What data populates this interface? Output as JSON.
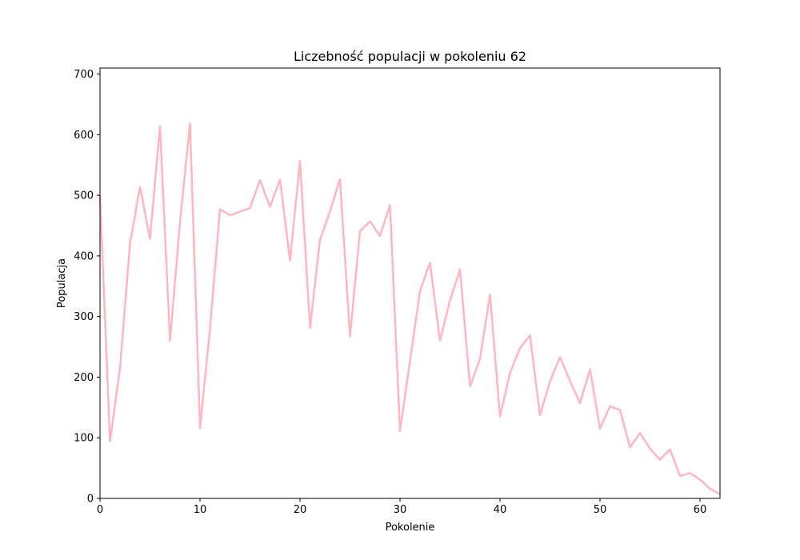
{
  "chart_data": {
    "type": "line",
    "title": "Liczebność populacji w pokoleniu 62",
    "xlabel": "Pokolenie",
    "ylabel": "Populacja",
    "xlim": [
      0,
      62
    ],
    "ylim": [
      0,
      710
    ],
    "xticks": [
      0,
      10,
      20,
      30,
      40,
      50,
      60
    ],
    "yticks": [
      0,
      100,
      200,
      300,
      400,
      500,
      600,
      700
    ],
    "grid": false,
    "series": [
      {
        "color": "#ffb6c1",
        "x": [
          0,
          1,
          2,
          3,
          4,
          5,
          6,
          7,
          8,
          9,
          10,
          11,
          12,
          13,
          14,
          15,
          16,
          17,
          18,
          19,
          20,
          21,
          22,
          23,
          24,
          25,
          26,
          27,
          28,
          29,
          30,
          31,
          32,
          33,
          34,
          35,
          36,
          37,
          38,
          39,
          40,
          41,
          42,
          43,
          44,
          45,
          46,
          47,
          48,
          49,
          50,
          51,
          52,
          53,
          54,
          55,
          56,
          57,
          58,
          59,
          60,
          61,
          62
        ],
        "y": [
          500,
          94,
          215,
          420,
          514,
          428,
          614,
          260,
          455,
          619,
          116,
          280,
          477,
          467,
          473,
          479,
          525,
          481,
          526,
          392,
          557,
          281,
          427,
          473,
          527,
          267,
          441,
          457,
          433,
          484,
          111,
          227,
          342,
          389,
          260,
          327,
          378,
          185,
          230,
          336,
          135,
          207,
          248,
          269,
          137,
          193,
          233,
          194,
          157,
          213,
          115,
          152,
          146,
          84,
          108,
          82,
          64,
          81,
          37,
          42,
          31,
          16,
          7
        ]
      }
    ]
  }
}
